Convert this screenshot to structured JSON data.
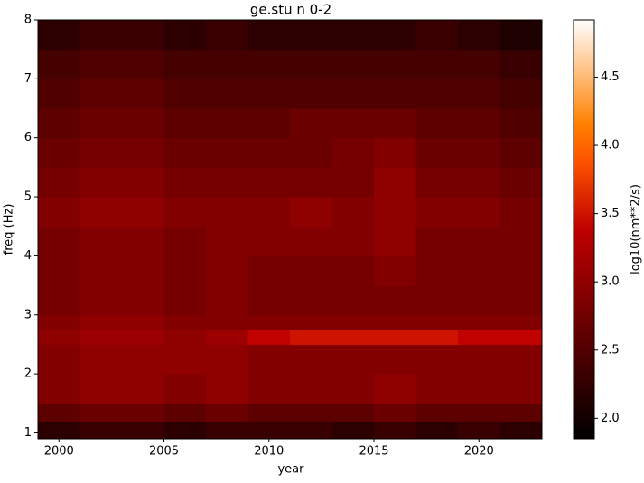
{
  "chart_data": {
    "type": "heatmap",
    "title": "ge.stu n 0-2",
    "xlabel": "year",
    "ylabel": "freq (Hz)",
    "colorbar_label": "log10(nm**2/s)",
    "colormap": "gist_heat",
    "x_edges": [
      1999,
      2001,
      2003,
      2005,
      2007,
      2009,
      2011,
      2013,
      2015,
      2017,
      2019,
      2021,
      2023
    ],
    "y_edges": [
      0.9,
      1.2,
      1.5,
      2,
      2.5,
      2.75,
      3,
      3.5,
      4,
      4.5,
      5,
      5.5,
      6,
      6.5,
      7,
      7.5,
      8
    ],
    "z": [
      [
        2.2,
        2.3,
        2.3,
        2.2,
        2.3,
        2.3,
        2.3,
        2.2,
        2.3,
        2.2,
        2.3,
        2.2
      ],
      [
        2.6,
        2.7,
        2.7,
        2.6,
        2.7,
        2.6,
        2.6,
        2.6,
        2.7,
        2.6,
        2.6,
        2.6
      ],
      [
        2.9,
        3.0,
        3.0,
        2.9,
        3.0,
        2.9,
        2.9,
        2.9,
        3.0,
        2.9,
        2.9,
        2.9
      ],
      [
        2.9,
        3.0,
        3.0,
        3.0,
        3.0,
        2.9,
        2.9,
        2.9,
        2.9,
        2.9,
        2.9,
        2.9
      ],
      [
        3.0,
        3.1,
        3.1,
        3.0,
        3.1,
        3.4,
        3.5,
        3.5,
        3.5,
        3.5,
        3.4,
        3.4
      ],
      [
        2.9,
        3.0,
        3.0,
        2.9,
        2.9,
        2.9,
        2.9,
        2.9,
        2.9,
        2.9,
        2.9,
        2.9
      ],
      [
        2.8,
        2.9,
        2.9,
        2.8,
        2.9,
        2.8,
        2.8,
        2.8,
        2.8,
        2.8,
        2.8,
        2.8
      ],
      [
        2.8,
        2.9,
        2.9,
        2.8,
        2.9,
        2.8,
        2.8,
        2.8,
        2.9,
        2.8,
        2.8,
        2.8
      ],
      [
        2.8,
        2.9,
        2.9,
        2.8,
        2.9,
        2.9,
        2.9,
        2.9,
        3.0,
        2.8,
        2.8,
        2.8
      ],
      [
        2.9,
        3.0,
        3.0,
        2.9,
        2.9,
        2.9,
        3.0,
        2.9,
        3.0,
        2.9,
        2.9,
        2.8
      ],
      [
        2.8,
        2.9,
        2.9,
        2.8,
        2.8,
        2.8,
        2.8,
        2.8,
        3.0,
        2.8,
        2.8,
        2.7
      ],
      [
        2.7,
        2.8,
        2.8,
        2.7,
        2.7,
        2.7,
        2.7,
        2.8,
        2.9,
        2.7,
        2.7,
        2.6
      ],
      [
        2.6,
        2.7,
        2.7,
        2.6,
        2.6,
        2.6,
        2.7,
        2.7,
        2.7,
        2.6,
        2.6,
        2.5
      ],
      [
        2.5,
        2.6,
        2.6,
        2.5,
        2.5,
        2.5,
        2.5,
        2.5,
        2.5,
        2.5,
        2.5,
        2.4
      ],
      [
        2.4,
        2.5,
        2.5,
        2.4,
        2.4,
        2.4,
        2.4,
        2.4,
        2.4,
        2.4,
        2.4,
        2.3
      ],
      [
        2.2,
        2.3,
        2.3,
        2.2,
        2.3,
        2.2,
        2.2,
        2.2,
        2.2,
        2.3,
        2.2,
        2.1
      ]
    ],
    "xlim": [
      1999,
      2023
    ],
    "xticks": [
      2000,
      2005,
      2010,
      2015,
      2020
    ],
    "ylim": [
      0.9,
      8
    ],
    "yticks": [
      1,
      2,
      3,
      4,
      5,
      6,
      7,
      8
    ],
    "zlim": [
      1.85,
      4.92
    ],
    "zticks": [
      {
        "value": 2.0,
        "label": "2.0"
      },
      2.5,
      {
        "value": 3.0,
        "label": "3.0"
      },
      3.5,
      {
        "value": 4.0,
        "label": "4.0"
      },
      4.5
    ]
  }
}
